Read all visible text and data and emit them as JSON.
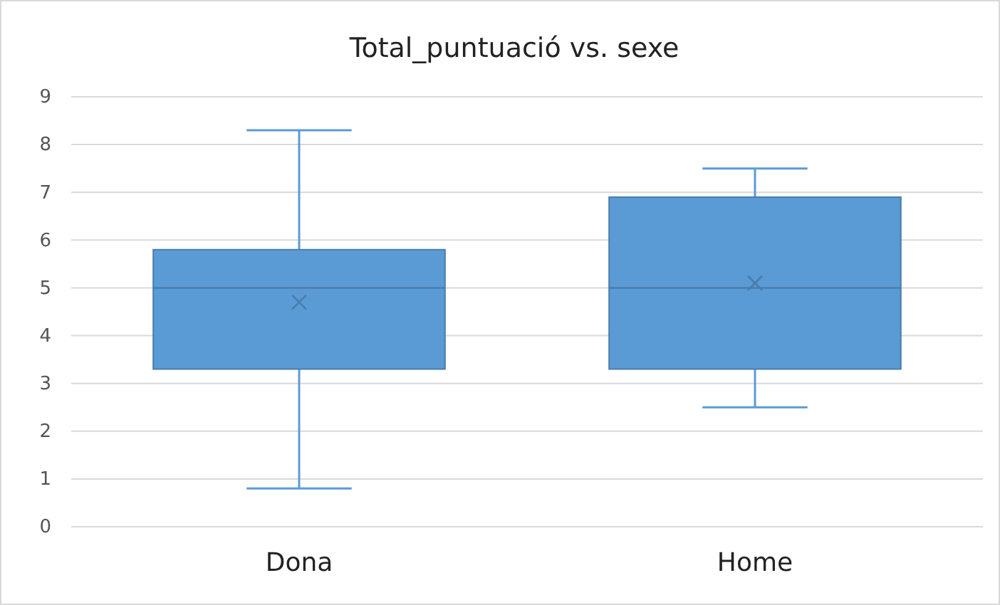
{
  "chart_data": {
    "type": "box",
    "title": "Total_puntuació vs. sexe",
    "categories": [
      "Dona",
      "Home"
    ],
    "boxes": [
      {
        "low": 0.8,
        "q1": 3.3,
        "median": 5.0,
        "q3": 5.8,
        "high": 8.3,
        "mean": 4.7
      },
      {
        "low": 2.5,
        "q1": 3.3,
        "median": 5.0,
        "q3": 6.9,
        "high": 7.5,
        "mean": 5.1
      }
    ],
    "color": "#5b9bd5",
    "ylim": [
      0,
      9
    ],
    "yticks": [
      0,
      1,
      2,
      3,
      4,
      5,
      6,
      7,
      8,
      9
    ],
    "grid": "y"
  }
}
